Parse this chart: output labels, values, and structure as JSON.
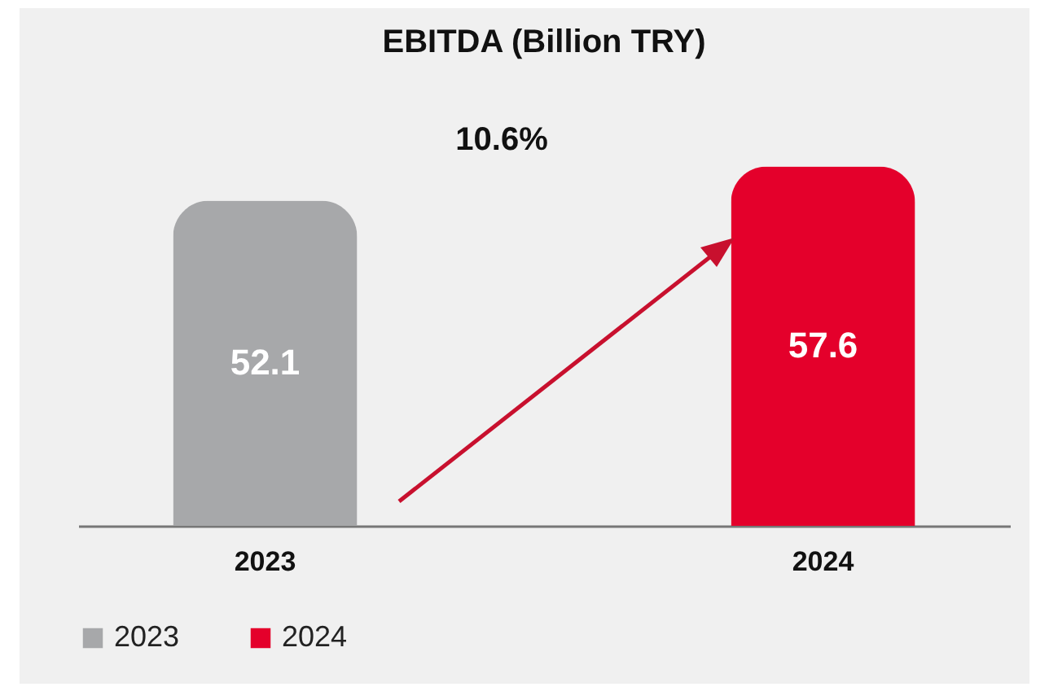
{
  "chart_data": {
    "type": "bar",
    "title": "EBITDA (Billion TRY)",
    "categories": [
      "2023",
      "2024"
    ],
    "series": [
      {
        "name": "2023",
        "color": "#a7a8aa",
        "values": [
          52.1,
          null
        ]
      },
      {
        "name": "2024",
        "color": "#e4002b",
        "values": [
          null,
          57.6
        ]
      }
    ],
    "data_labels": true,
    "legend": "bottom",
    "grid": false,
    "annotations": [
      "10.6%"
    ]
  }
}
